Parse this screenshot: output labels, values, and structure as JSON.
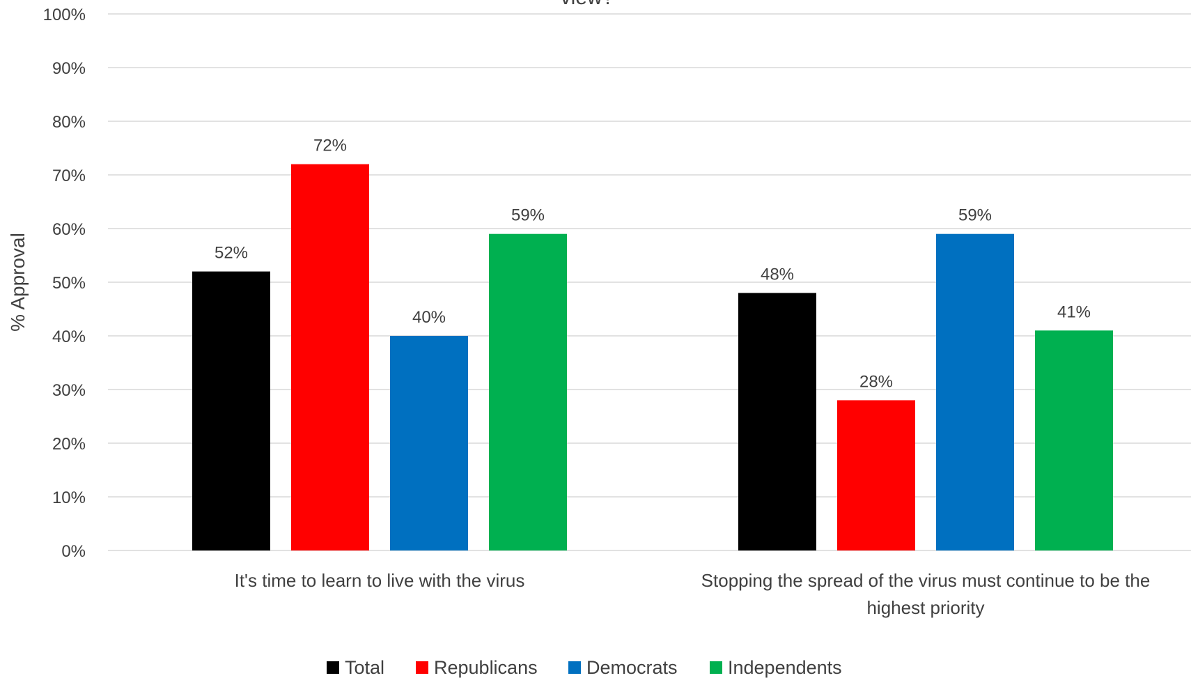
{
  "chart_data": {
    "type": "bar",
    "title": "view?",
    "ylabel": "% Approval",
    "xlabel": "",
    "ylim": [
      0,
      100
    ],
    "yticks": [
      0,
      10,
      20,
      30,
      40,
      50,
      60,
      70,
      80,
      90,
      100
    ],
    "ytick_labels": [
      "0%",
      "10%",
      "20%",
      "30%",
      "40%",
      "50%",
      "60%",
      "70%",
      "80%",
      "90%",
      "100%"
    ],
    "categories": [
      [
        "It's time to learn to live with the virus"
      ],
      [
        "Stopping the spread of the virus must continue to be the",
        "highest priority"
      ]
    ],
    "series": [
      {
        "name": "Total",
        "color": "#000000",
        "values": [
          52,
          48
        ],
        "labels": [
          "52%",
          "48%"
        ]
      },
      {
        "name": "Republicans",
        "color": "#ff0000",
        "values": [
          72,
          28
        ],
        "labels": [
          "72%",
          "28%"
        ]
      },
      {
        "name": "Democrats",
        "color": "#0070c0",
        "values": [
          40,
          59
        ],
        "labels": [
          "40%",
          "59%"
        ]
      },
      {
        "name": "Independents",
        "color": "#00b050",
        "values": [
          59,
          41
        ],
        "labels": [
          "59%",
          "41%"
        ]
      }
    ],
    "grid": true,
    "gridline_color": "#d9d9d9",
    "legend_position": "bottom"
  }
}
